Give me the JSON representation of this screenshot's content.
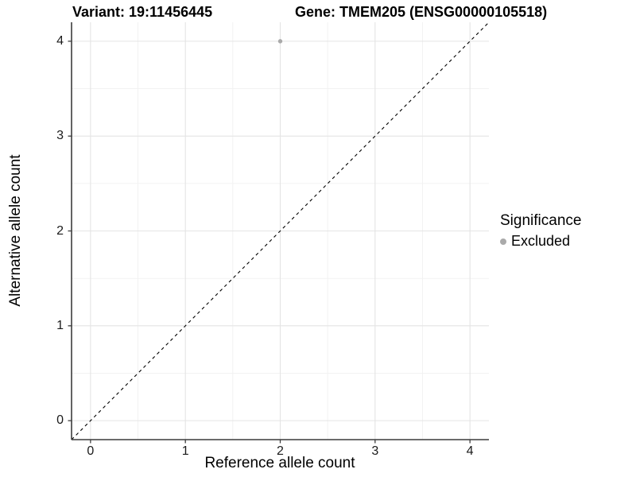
{
  "chart_data": {
    "type": "scatter",
    "titles": {
      "left": "Variant: 19:11456445",
      "right": "Gene: TMEM205 (ENSG00000105518)"
    },
    "xlabel": "Reference allele count",
    "ylabel": "Alternative allele count",
    "xlim": [
      -0.2,
      4.2
    ],
    "ylim": [
      -0.2,
      4.2
    ],
    "x_ticks": [
      0,
      1,
      2,
      3,
      4
    ],
    "y_ticks": [
      0,
      1,
      2,
      3,
      4
    ],
    "x_minor": [
      0.5,
      1.5,
      2.5,
      3.5
    ],
    "y_minor": [
      0.5,
      1.5,
      2.5,
      3.5
    ],
    "grid": {
      "major": true,
      "minor": true
    },
    "reference_line": {
      "slope": 1,
      "intercept": 0,
      "style": "dashed",
      "color": "#000000"
    },
    "series": [
      {
        "name": "Excluded",
        "marker": "circle",
        "color": "#aaaaaa",
        "points": [
          {
            "x": 2,
            "y": 4
          }
        ]
      }
    ],
    "legend": {
      "title": "Significance",
      "position": "right",
      "entries": [
        {
          "label": "Excluded",
          "color": "#aaaaaa",
          "marker": "circle"
        }
      ]
    },
    "colors": {
      "grid_major": "#e4e4e4",
      "grid_minor": "#f1f1f1",
      "axis": "#3c3c3c",
      "text": "#000000"
    }
  }
}
